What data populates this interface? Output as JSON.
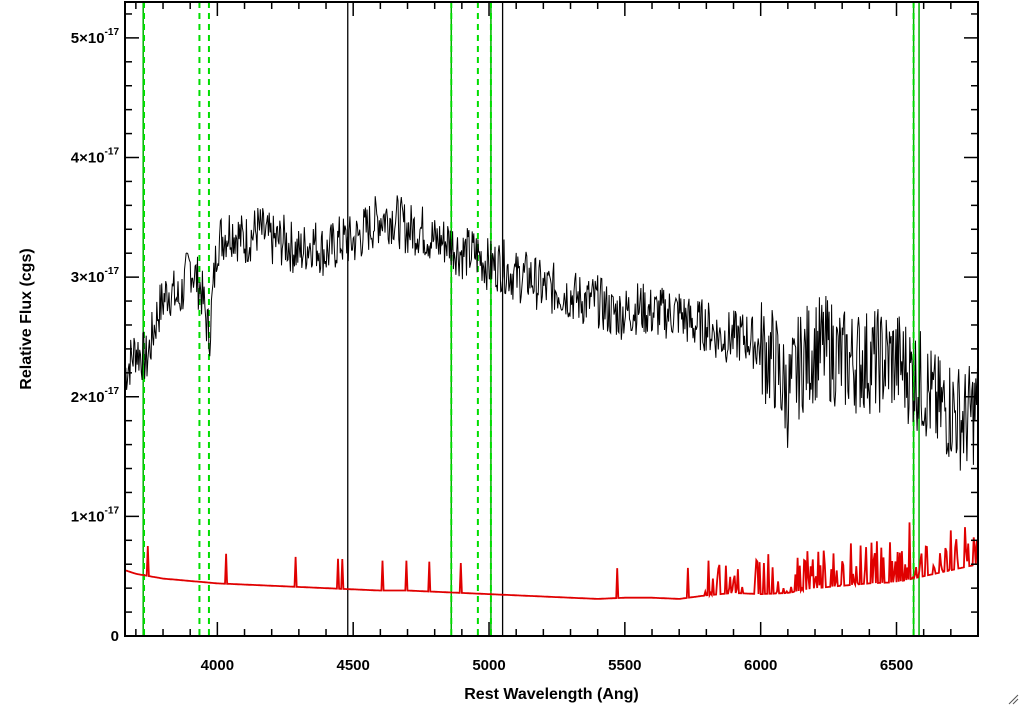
{
  "chart_data": {
    "type": "line",
    "xlabel": "Rest Wavelength (Ang)",
    "ylabel": "Relative Flux (cgs)",
    "xlim": [
      3660,
      6800
    ],
    "ylim": [
      0,
      5.3
    ],
    "y_scale_exponent": "-17",
    "grid": false,
    "legend": "none",
    "x_ticks": [
      {
        "value": 4000,
        "label": "4000"
      },
      {
        "value": 4500,
        "label": "4500"
      },
      {
        "value": 5000,
        "label": "5000"
      },
      {
        "value": 5500,
        "label": "5500"
      },
      {
        "value": 6000,
        "label": "6000"
      },
      {
        "value": 6500,
        "label": "6500"
      }
    ],
    "y_ticks": [
      {
        "value": 0,
        "mantissa": "0",
        "exponent": ""
      },
      {
        "value": 1,
        "mantissa": "1×10",
        "exponent": "-17"
      },
      {
        "value": 2,
        "mantissa": "2×10",
        "exponent": "-17"
      },
      {
        "value": 3,
        "mantissa": "3×10",
        "exponent": "-17"
      },
      {
        "value": 4,
        "mantissa": "4×10",
        "exponent": "-17"
      },
      {
        "value": 5,
        "mantissa": "5×10",
        "exponent": "-17"
      }
    ],
    "colors": {
      "spectrum": "#000000",
      "error": "#e00000",
      "line_markers_solid": "#00b000",
      "line_markers_dashed": "#00dd00"
    },
    "series": [
      {
        "color": "#000000",
        "points": [
          [
            3660,
            2.2
          ],
          [
            3700,
            2.4
          ],
          [
            3740,
            2.3
          ],
          [
            3780,
            2.7
          ],
          [
            3820,
            2.9
          ],
          [
            3860,
            2.8
          ],
          [
            3900,
            3.1
          ],
          [
            3940,
            2.9
          ],
          [
            3970,
            2.5
          ],
          [
            4000,
            3.3
          ],
          [
            4050,
            3.4
          ],
          [
            4100,
            3.3
          ],
          [
            4150,
            3.4
          ],
          [
            4200,
            3.3
          ],
          [
            4250,
            3.3
          ],
          [
            4300,
            3.2
          ],
          [
            4350,
            3.3
          ],
          [
            4400,
            3.2
          ],
          [
            4450,
            3.3
          ],
          [
            4500,
            3.3
          ],
          [
            4550,
            3.4
          ],
          [
            4600,
            3.5
          ],
          [
            4650,
            3.5
          ],
          [
            4700,
            3.4
          ],
          [
            4750,
            3.4
          ],
          [
            4800,
            3.3
          ],
          [
            4850,
            3.3
          ],
          [
            4900,
            3.2
          ],
          [
            4950,
            3.2
          ],
          [
            5000,
            3.1
          ],
          [
            5050,
            3.1
          ],
          [
            5100,
            3.0
          ],
          [
            5150,
            3.0
          ],
          [
            5200,
            2.9
          ],
          [
            5250,
            2.9
          ],
          [
            5300,
            2.85
          ],
          [
            5350,
            2.8
          ],
          [
            5400,
            2.8
          ],
          [
            5450,
            2.7
          ],
          [
            5500,
            2.7
          ],
          [
            5550,
            2.75
          ],
          [
            5600,
            2.7
          ],
          [
            5650,
            2.7
          ],
          [
            5700,
            2.7
          ],
          [
            5750,
            2.6
          ],
          [
            5800,
            2.6
          ],
          [
            5850,
            2.5
          ],
          [
            5900,
            2.5
          ],
          [
            5950,
            2.5
          ],
          [
            6000,
            2.4
          ],
          [
            6050,
            2.3
          ],
          [
            6100,
            2.0
          ],
          [
            6150,
            2.3
          ],
          [
            6200,
            2.4
          ],
          [
            6250,
            2.4
          ],
          [
            6300,
            2.3
          ],
          [
            6350,
            2.3
          ],
          [
            6400,
            2.3
          ],
          [
            6450,
            2.3
          ],
          [
            6500,
            2.3
          ],
          [
            6550,
            2.2
          ],
          [
            6600,
            2.1
          ],
          [
            6650,
            1.9
          ],
          [
            6700,
            1.9
          ],
          [
            6750,
            1.8
          ],
          [
            6800,
            1.9
          ]
        ]
      },
      {
        "color": "#e00000",
        "points": [
          [
            3660,
            0.55
          ],
          [
            3700,
            0.52
          ],
          [
            3750,
            0.5
          ],
          [
            3800,
            0.48
          ],
          [
            3850,
            0.47
          ],
          [
            3900,
            0.46
          ],
          [
            3950,
            0.45
          ],
          [
            4000,
            0.44
          ],
          [
            4100,
            0.43
          ],
          [
            4200,
            0.42
          ],
          [
            4300,
            0.41
          ],
          [
            4400,
            0.4
          ],
          [
            4500,
            0.39
          ],
          [
            4600,
            0.38
          ],
          [
            4700,
            0.38
          ],
          [
            4800,
            0.37
          ],
          [
            4900,
            0.36
          ],
          [
            5000,
            0.35
          ],
          [
            5100,
            0.34
          ],
          [
            5200,
            0.33
          ],
          [
            5300,
            0.32
          ],
          [
            5400,
            0.31
          ],
          [
            5500,
            0.32
          ],
          [
            5600,
            0.32
          ],
          [
            5700,
            0.31
          ],
          [
            5800,
            0.34
          ],
          [
            5900,
            0.36
          ],
          [
            6000,
            0.35
          ],
          [
            6100,
            0.36
          ],
          [
            6200,
            0.4
          ],
          [
            6300,
            0.42
          ],
          [
            6400,
            0.44
          ],
          [
            6500,
            0.45
          ],
          [
            6600,
            0.5
          ],
          [
            6700,
            0.55
          ],
          [
            6800,
            0.6
          ]
        ]
      }
    ],
    "marker_lines": [
      {
        "x": 3727,
        "style": "solid-green"
      },
      {
        "x": 3730,
        "style": "dashed-green"
      },
      {
        "x": 3934,
        "style": "dashed-green"
      },
      {
        "x": 3969,
        "style": "dashed-green"
      },
      {
        "x": 4480,
        "style": "solid-black"
      },
      {
        "x": 4861,
        "style": "solid-green"
      },
      {
        "x": 4861,
        "style": "dashed-green"
      },
      {
        "x": 4959,
        "style": "dashed-green"
      },
      {
        "x": 5007,
        "style": "solid-green"
      },
      {
        "x": 5007,
        "style": "dashed-green"
      },
      {
        "x": 5050,
        "style": "solid-black"
      },
      {
        "x": 6563,
        "style": "solid-green"
      },
      {
        "x": 6563,
        "style": "dashed-green"
      },
      {
        "x": 6583,
        "style": "solid-green"
      }
    ]
  }
}
